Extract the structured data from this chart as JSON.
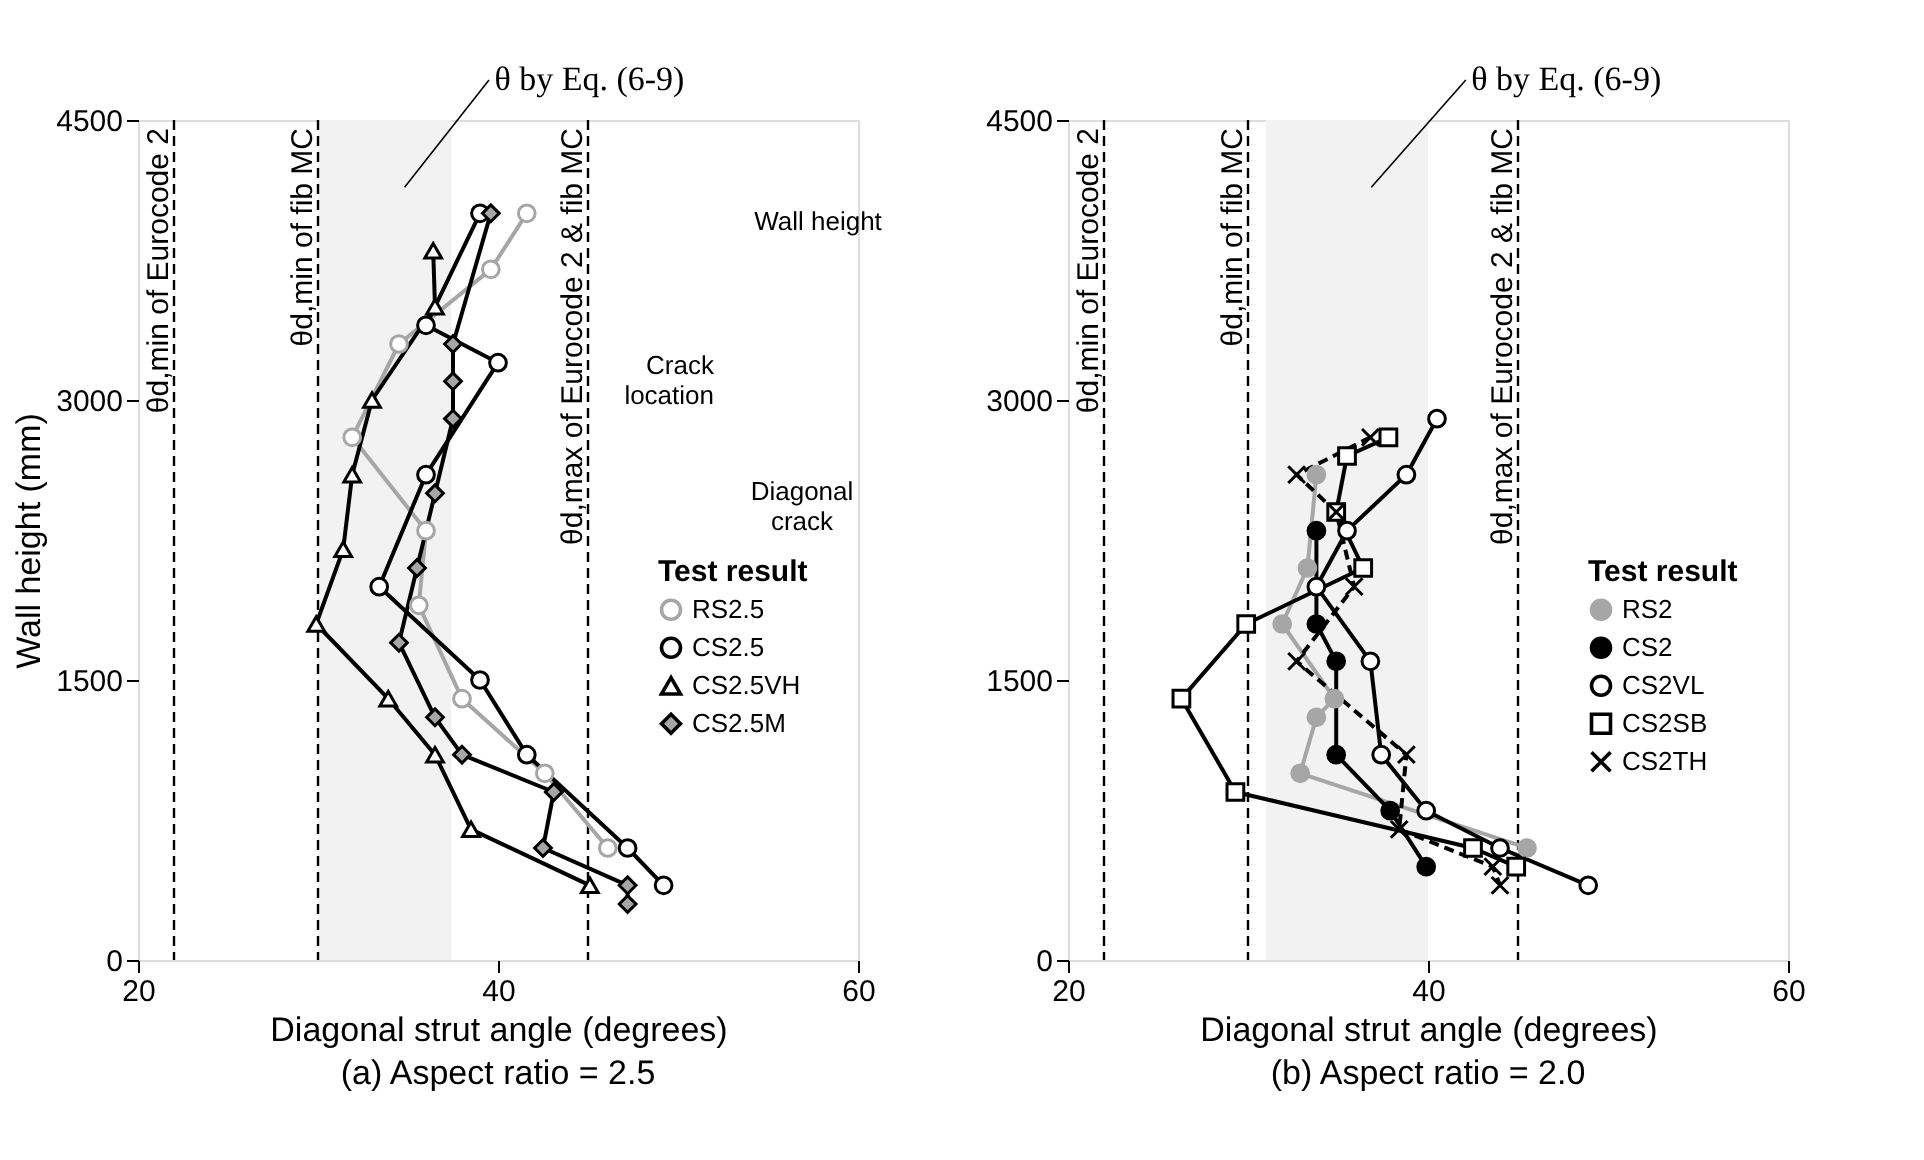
{
  "chart_data": [
    {
      "type": "line",
      "title": "(a) Aspect ratio = 2.5",
      "xlabel": "Diagonal strut angle (degrees)",
      "ylabel": "Wall height (mm)",
      "legend_title": "Test result",
      "legend": "right",
      "grid": false,
      "xlim": [
        20,
        60
      ],
      "xticks": [
        20,
        40,
        60
      ],
      "ylim": [
        0,
        4500
      ],
      "yticks": [
        0,
        1500,
        3000,
        4500
      ],
      "bands": [
        {
          "axis": "x",
          "from": 30,
          "to": 37.4,
          "label": "θ by Eq. (6-9)",
          "color": "#f2f2f2"
        }
      ],
      "ref_lines": [
        {
          "axis": "x",
          "value": 22,
          "label": "θd,min of Eurocode 2",
          "color": "#000000",
          "line_style": "dashed"
        },
        {
          "axis": "x",
          "value": 30,
          "label": "θd,min of fib MC",
          "color": "#000000",
          "line_style": "dashed"
        },
        {
          "axis": "x",
          "value": 45,
          "label": "θd,max of Eurocode 2 & fib MC",
          "color": "#000000",
          "line_style": "dashed"
        }
      ],
      "annotations": [
        "Wall height",
        "Crack location",
        "Diagonal crack"
      ],
      "series": [
        {
          "name": "RS2.5",
          "color": "#a6a6a6",
          "marker": "circle",
          "colors": [
            "#ffffff",
            "#ffffff",
            "#ffffff",
            "#ffffff",
            "#ffffff",
            "#ffffff",
            "#ffffff",
            "#ffffff",
            "#ffffff"
          ],
          "line_style": "solid",
          "x": [
            41.6,
            39.6,
            34.5,
            31.9,
            36.0,
            35.6,
            38.0,
            42.6,
            46.1
          ],
          "values": [
            4000,
            3700,
            3300,
            2800,
            2300,
            1900,
            1400,
            1000,
            600
          ]
        },
        {
          "name": "CS2.5",
          "color": "#000000",
          "marker": "circle",
          "colors": [
            "#ffffff",
            "#ffffff",
            "#ffffff",
            "#ffffff",
            "#ffffff",
            "#ffffff",
            "#ffffff",
            "#ffffff",
            "#ffffff"
          ],
          "line_style": "solid",
          "x": [
            39.0,
            36.0,
            40.0,
            36.0,
            33.4,
            39.0,
            41.6,
            47.2,
            49.2
          ],
          "values": [
            4000,
            3400,
            3200,
            2600,
            2000,
            1500,
            1100,
            600,
            400
          ]
        },
        {
          "name": "CS2.5VH",
          "color": "#000000",
          "marker": "triangle",
          "colors": [
            "#ffffff",
            "#ffffff",
            "#ffffff",
            "#ffffff",
            "#ffffff",
            "#ffffff",
            "#ffffff",
            "#ffffff",
            "#ffffff",
            "#ffffff"
          ],
          "line_style": "solid",
          "x": [
            36.4,
            36.5,
            33.0,
            31.9,
            31.4,
            29.9,
            33.9,
            36.5,
            38.5,
            45.1
          ],
          "values": [
            3800,
            3500,
            3000,
            2600,
            2200,
            1800,
            1400,
            1100,
            700,
            400
          ]
        },
        {
          "name": "CS2.5M",
          "color": "#000000",
          "marker": "diamond",
          "colors": [
            "#a6a6a6",
            "#a6a6a6",
            "#a6a6a6",
            "#a6a6a6",
            "#a6a6a6",
            "#a6a6a6",
            "#a6a6a6",
            "#a6a6a6",
            "#a6a6a6",
            "#a6a6a6",
            "#a6a6a6",
            "#a6a6a6",
            "#a6a6a6"
          ],
          "line_style": "solid",
          "x": [
            39.6,
            37.5,
            37.5,
            37.5,
            36.5,
            35.5,
            34.5,
            36.5,
            38.0,
            43.1,
            42.5,
            47.2,
            47.2
          ],
          "values": [
            4000,
            3300,
            3100,
            2900,
            2500,
            2100,
            1700,
            1300,
            1100,
            900,
            600,
            400,
            300
          ]
        }
      ]
    },
    {
      "type": "line",
      "title": "(b) Aspect ratio = 2.0",
      "xlabel": "Diagonal strut angle (degrees)",
      "legend_title": "Test result",
      "legend": "right",
      "grid": false,
      "xlim": [
        20,
        60
      ],
      "xticks": [
        20,
        40,
        60
      ],
      "ylim": [
        0,
        4500
      ],
      "yticks": [
        0,
        1500,
        3000,
        4500
      ],
      "bands": [
        {
          "axis": "x",
          "from": 31,
          "to": 40,
          "label": "θ by Eq. (6-9)",
          "color": "#f2f2f2"
        }
      ],
      "ref_lines": [
        {
          "axis": "x",
          "value": 22,
          "label": "θd,min of Eurocode 2",
          "color": "#000000",
          "line_style": "dashed"
        },
        {
          "axis": "x",
          "value": 30,
          "label": "θd,min of fib MC",
          "color": "#000000",
          "line_style": "dashed"
        },
        {
          "axis": "x",
          "value": 45,
          "label": "θd,max of Eurocode 2 & fib MC",
          "color": "#000000",
          "line_style": "dashed"
        }
      ],
      "series": [
        {
          "name": "RS2",
          "color": "#a6a6a6",
          "marker": "circle",
          "colors": [
            "#a6a6a6",
            "#a6a6a6",
            "#a6a6a6",
            "#a6a6a6",
            "#a6a6a6",
            "#a6a6a6",
            "#a6a6a6"
          ],
          "line_style": "solid",
          "x": [
            33.8,
            33.3,
            31.9,
            34.8,
            33.8,
            32.9,
            45.5
          ],
          "values": [
            2600,
            2100,
            1800,
            1400,
            1300,
            1000,
            600
          ]
        },
        {
          "name": "CS2",
          "color": "#000000",
          "marker": "circle",
          "colors": [
            "#000000",
            "#000000",
            "#000000",
            "#000000",
            "#000000",
            "#000000"
          ],
          "line_style": "solid",
          "x": [
            33.8,
            33.8,
            34.9,
            34.9,
            37.9,
            39.9
          ],
          "values": [
            2300,
            1800,
            1600,
            1100,
            800,
            500
          ]
        },
        {
          "name": "CS2VL",
          "color": "#000000",
          "marker": "circle",
          "colors": [
            "#ffffff",
            "#ffffff",
            "#ffffff",
            "#ffffff",
            "#ffffff",
            "#ffffff",
            "#ffffff",
            "#ffffff",
            "#ffffff"
          ],
          "line_style": "solid",
          "x": [
            40.5,
            38.8,
            35.5,
            33.8,
            36.8,
            37.4,
            39.9,
            44.0,
            48.9
          ],
          "values": [
            2900,
            2600,
            2300,
            2000,
            1600,
            1100,
            800,
            600,
            400
          ]
        },
        {
          "name": "CS2SB",
          "color": "#000000",
          "marker": "square",
          "colors": [
            "#ffffff",
            "#ffffff",
            "#ffffff",
            "#ffffff",
            "#ffffff",
            "#ffffff",
            "#ffffff",
            "#ffffff",
            "#ffffff"
          ],
          "line_style": "solid",
          "x": [
            37.8,
            35.5,
            34.9,
            36.4,
            29.9,
            26.3,
            29.3,
            42.5,
            44.9
          ],
          "values": [
            2800,
            2700,
            2400,
            2100,
            1800,
            1400,
            900,
            600,
            500
          ]
        },
        {
          "name": "CS2TH",
          "color": "#000000",
          "marker": "cross",
          "line_style": "dashed",
          "x": [
            36.8,
            32.7,
            34.9,
            35.9,
            32.7,
            38.8,
            38.4,
            43.6,
            44.0
          ],
          "values": [
            2800,
            2600,
            2400,
            2000,
            1600,
            1100,
            700,
            500,
            400
          ]
        }
      ]
    }
  ]
}
